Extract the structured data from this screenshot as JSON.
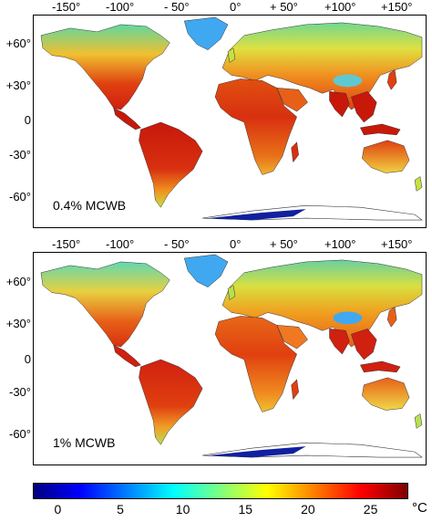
{
  "panels": [
    {
      "label": "0.4% MCWB",
      "lon_ticks": [
        "-150°",
        "-100°",
        "- 50°",
        "0°",
        "+ 50°",
        "+100°",
        "+150°"
      ],
      "lat_ticks": [
        "+60°",
        "+30°",
        "0",
        "-30°",
        "-60°"
      ]
    },
    {
      "label": "1% MCWB",
      "lon_ticks": [
        "-150°",
        "-100°",
        "- 50°",
        "0°",
        "+ 50°",
        "+100°",
        "+150°"
      ],
      "lat_ticks": [
        "+60°",
        "+30°",
        "0",
        "-30°",
        "-60°"
      ]
    }
  ],
  "colorbar": {
    "ticks": [
      "0",
      "5",
      "10",
      "15",
      "20",
      "25"
    ],
    "unit": "°C",
    "range": [
      -2,
      28
    ],
    "colors": [
      "#00007f",
      "#0000ff",
      "#007fff",
      "#00ffff",
      "#7fff7f",
      "#ffff00",
      "#ff7f00",
      "#ff0000",
      "#7f0000"
    ]
  },
  "map_colors": {
    "tropics": "#c8180a",
    "hot": "#e04010",
    "warm": "#f08a20",
    "mild": "#f0c030",
    "cool": "#c8e040",
    "cold": "#60d8a0",
    "ice": "#40a8f0",
    "deep": "#1020a0"
  }
}
